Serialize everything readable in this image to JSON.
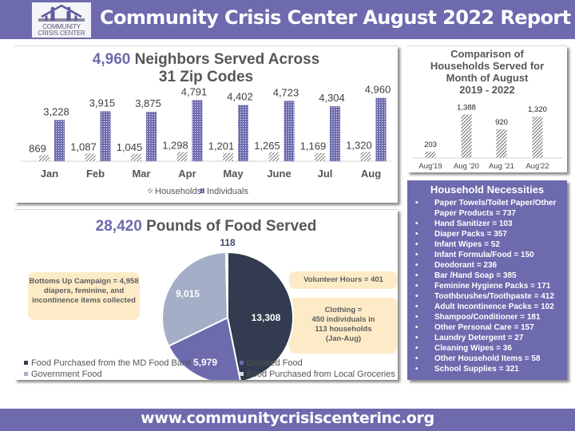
{
  "header": {
    "title": "Community Crisis Center August 2022 Report",
    "logo": {
      "line1": "COMMUNITY",
      "line2": "CRISIS CENTER",
      "icon": "family-house-icon"
    }
  },
  "colors": {
    "brand_purple": "#6d6aae",
    "dark_navy": "#323b4f",
    "slate_light": "#a4aec6",
    "callout_bg": "#fdebc7",
    "text_gray": "#575757"
  },
  "neighbors_panel": {
    "title_number": "4,960",
    "title_rest": " Neighbors Served Across",
    "title_line2": "31 Zip Codes"
  },
  "food_panel": {
    "title_number": "28,420",
    "title_rest": " Pounds of Food Served",
    "callouts": {
      "bottoms_up": "Bottoms Up Campaign  = 4,958 diapers, feminine, and incontinence items collected",
      "volunteer": "Volunteer Hours = 401",
      "clothing_l1": "Clothing =",
      "clothing_l2": "450 individuals in",
      "clothing_l3": "113 households",
      "clothing_l4": "(Jan-Aug)"
    }
  },
  "comparison_panel": {
    "title_l1": "Comparison of",
    "title_l2": "Households Served for",
    "title_l3": "Month of August",
    "title_l4": "2019 - 2022"
  },
  "necessities": {
    "title": "Household Necessities",
    "bullet": "•",
    "items": [
      "Paper Towels/Toilet Paper/Other Paper Products  = 737",
      "Hand Sanitizer = 103",
      "Diaper Packs = 357",
      "Infant Wipes = 52",
      "Infant Formula/Food = 150",
      "Deodorant = 236",
      "Bar /Hand Soap = 385",
      "Feminine Hygiene Packs = 171",
      "Toothbrushes/Toothpaste = 412",
      "Adult Incontinence Packs = 102",
      "Shampoo/Conditioner = 181",
      "Other Personal Care = 157",
      "Laundry Detergent = 27",
      "Cleaning Wipes = 36",
      "Other Household Items = 58",
      "School Supplies = 321"
    ]
  },
  "footer": {
    "url": "www.communitycrisiscenterinc.org"
  },
  "chart_data": [
    {
      "id": "monthly",
      "type": "bar",
      "title": "4,960 Neighbors Served Across 31 Zip Codes",
      "categories": [
        "Jan",
        "Feb",
        "Mar",
        "Apr",
        "May",
        "June",
        "Jul",
        "Aug"
      ],
      "series": [
        {
          "name": "Households",
          "pattern": "diagonal-hatch",
          "color": "#7d7d7d",
          "values": [
            869,
            1087,
            1045,
            1298,
            1201,
            1265,
            1169,
            1320
          ],
          "labels": [
            "869",
            "1,087",
            "1,045",
            "1,298",
            "1,201",
            "1,265",
            "1,169",
            "1,320"
          ]
        },
        {
          "name": "Individuals",
          "pattern": "dots",
          "color": "#6d6aae",
          "values": [
            3228,
            3915,
            3875,
            4791,
            4402,
            4723,
            4304,
            4960
          ],
          "labels": [
            "3,228",
            "3,915",
            "3,875",
            "4,791",
            "4,402",
            "4,723",
            "4,304",
            "4,960"
          ]
        }
      ],
      "ylim": [
        0,
        5000
      ],
      "grid": false,
      "legend": "bottom"
    },
    {
      "id": "august_comparison",
      "type": "bar",
      "title": "Comparison of Households Served for Month of August 2019 - 2022",
      "categories": [
        "Aug'19",
        "Aug '20",
        "Aug '21",
        "Aug'22"
      ],
      "values": [
        203,
        1388,
        920,
        1320
      ],
      "labels": [
        "203",
        "1,388",
        "920",
        "1,320"
      ],
      "ylim": [
        0,
        1400
      ],
      "grid": false
    },
    {
      "id": "food",
      "type": "pie",
      "title": "28,420 Pounds of Food Served",
      "slices": [
        {
          "name": "Food Purchased from the MD Food Bank",
          "value": 13308,
          "label": "13,308",
          "color": "#323b4f"
        },
        {
          "name": "Donated Food",
          "value": 5979,
          "label": "5,979",
          "color": "#6d6aae"
        },
        {
          "name": "Government Food",
          "value": 9015,
          "label": "9,015",
          "color": "#a4aec6"
        },
        {
          "name": "Food Purchased from Local Groceries",
          "value": 118,
          "label": "118",
          "color": "#dcdcdc"
        }
      ],
      "legend": "bottom"
    }
  ]
}
